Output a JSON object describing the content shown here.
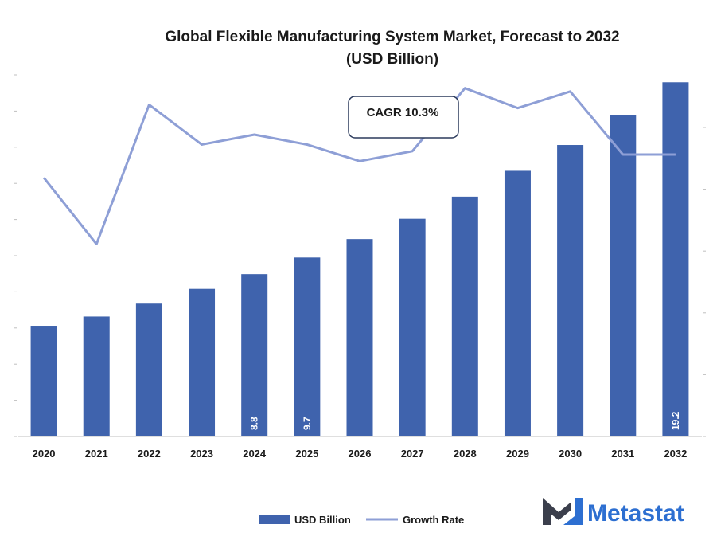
{
  "colors": {
    "bar": "#3f63ad",
    "line": "#8e9fd6",
    "axis": "#bfbfbf",
    "text": "#1a1a1a",
    "logo_dark": "#3b3f4c",
    "logo_blue": "#2d6fd1"
  },
  "brand": {
    "name": "Metastat",
    "logo_icon": "metastat-m-logo-icon"
  },
  "callout": {
    "text": "CAGR 10.3%"
  },
  "chart_data": {
    "type": "bar",
    "title": "Global Flexible Manufacturing System Market, Forecast to 2032",
    "subtitle": "(USD Billion)",
    "categories": [
      "2020",
      "2021",
      "2022",
      "2023",
      "2024",
      "2025",
      "2026",
      "2027",
      "2028",
      "2029",
      "2030",
      "2031",
      "2032"
    ],
    "series": [
      {
        "name": "USD Billion",
        "type": "bar",
        "values": [
          6.0,
          6.5,
          7.2,
          8.0,
          8.8,
          9.7,
          10.7,
          11.8,
          13.0,
          14.4,
          15.8,
          17.4,
          19.2
        ],
        "data_labels": {
          "4": "8.8",
          "5": "9.7",
          "12": "19.2"
        }
      },
      {
        "name": "Growth Rate",
        "type": "line",
        "values": [
          7.8,
          5.8,
          10.0,
          8.8,
          9.1,
          8.8,
          8.3,
          8.6,
          10.5,
          9.9,
          10.4,
          8.5,
          8.5
        ]
      }
    ],
    "ylim": [
      0,
      19.6
    ],
    "y2lim": [
      0,
      10.9
    ],
    "legend_position": "bottom-center",
    "grid": false
  }
}
